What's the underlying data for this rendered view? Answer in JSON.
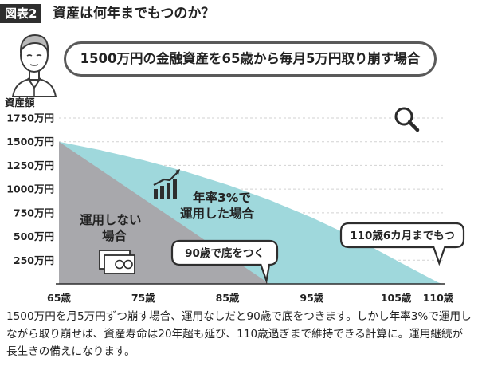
{
  "header": {
    "figure_label": "図表2",
    "title": "資産は何年までもつのか？"
  },
  "subtitle": "1500万円の金融資産を65歳から毎月5万円取り崩す場合",
  "caption": "1500万円を月5万円ずつ崩す場合、運用なしだと90歳で底をつきます。しかし年率3%で運用しながら取り崩せば、資産寿命は20年超も延び、110歳過ぎまで維持できる計算に。運用継続が長生きの備えになります。",
  "colors": {
    "no_invest": "#a8a8ac",
    "invest": "#9fd8dc",
    "dark": "#3a3a3a"
  },
  "icons": [
    "person-icon",
    "magnifier-icon",
    "growth-chart-icon",
    "banknote-icon"
  ],
  "chart_data": {
    "type": "area",
    "ylabel": "資産額",
    "ylim": [
      0,
      1750
    ],
    "xlim": [
      65,
      110
    ],
    "y_ticks": [
      {
        "value": 250,
        "label": "250万円"
      },
      {
        "value": 500,
        "label": "500万円"
      },
      {
        "value": 750,
        "label": "750万円"
      },
      {
        "value": 1000,
        "label": "1000万円"
      },
      {
        "value": 1250,
        "label": "1250万円"
      },
      {
        "value": 1500,
        "label": "1500万円"
      },
      {
        "value": 1750,
        "label": "1750万円"
      }
    ],
    "x_ticks": [
      {
        "value": 65,
        "label": "65歳"
      },
      {
        "value": 75,
        "label": "75歳"
      },
      {
        "value": 85,
        "label": "85歳"
      },
      {
        "value": 95,
        "label": "95歳"
      },
      {
        "value": 105,
        "label": "105歳"
      },
      {
        "value": 110,
        "label": "110歳"
      }
    ],
    "grid": true,
    "series": [
      {
        "name": "年率3%で運用した場合",
        "x": [
          65,
          70,
          75,
          80,
          85,
          90,
          95,
          100,
          105,
          110,
          110.5
        ],
        "y": [
          1500,
          1410,
          1305,
          1185,
          1045,
          885,
          700,
          490,
          250,
          15,
          0
        ]
      },
      {
        "name": "運用しない場合",
        "x": [
          65,
          70,
          75,
          80,
          85,
          90
        ],
        "y": [
          1500,
          1200,
          900,
          600,
          300,
          0
        ]
      }
    ],
    "annotations": [
      {
        "text": "90歳で底をつく",
        "x": 90,
        "y": 0
      },
      {
        "text": "110歳6カ月までもつ",
        "x": 110.5,
        "y": 0
      }
    ]
  }
}
